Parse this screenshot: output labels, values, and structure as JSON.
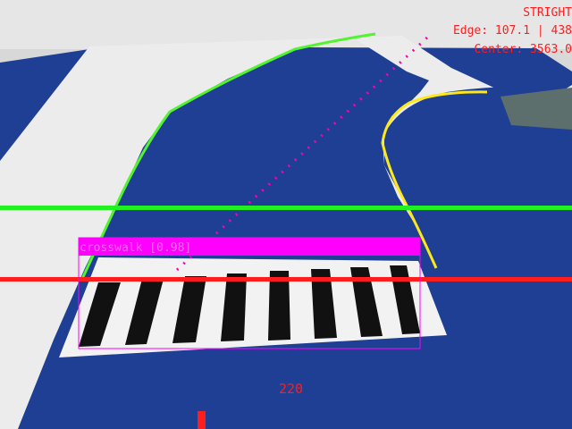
{
  "hud": {
    "status": "STRIGHT",
    "edge": "Edge: 107.1 | 438",
    "center": "Center: 3563.0"
  },
  "detection": {
    "label": "crosswalk [0.98]"
  },
  "steering": {
    "value": "220"
  },
  "colors": {
    "track_blue": "#1f3f94",
    "track_white": "#ececec",
    "green_edge": "#52f52d",
    "yellow_edge": "#ffe81a",
    "red_line": "#ff1d1d",
    "magenta": "#ff00ff"
  }
}
